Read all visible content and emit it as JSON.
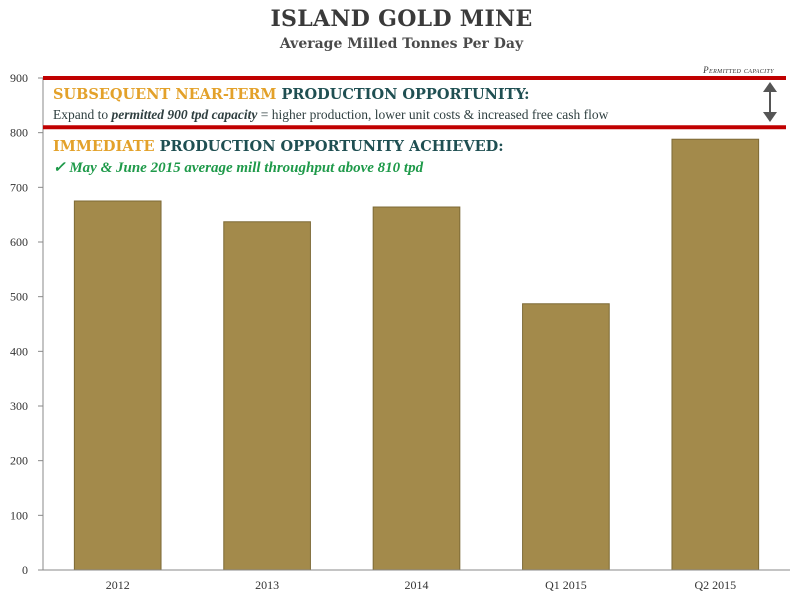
{
  "title": "ISLAND GOLD MINE",
  "subtitle": "Average Milled Tonnes Per Day",
  "annotations": {
    "permitted_label": "Permitted capacity",
    "subsequent_highlight": "SUBSEQUENT NEAR-TERM",
    "subsequent_rest": " PRODUCTION OPPORTUNITY:",
    "expand_prefix": "Expand to ",
    "expand_bold": "permitted 900 tpd capacity",
    "expand_suffix": " = higher production, lower unit costs & increased free cash flow",
    "immediate_highlight": "IMMEDIATE",
    "immediate_rest": " PRODUCTION OPPORTUNITY ACHIEVED:",
    "achieved_line": "✓ May & June 2015 average mill throughput above 810 tpd"
  },
  "colors": {
    "bar": "#a38a4b",
    "bar_edge": "#7d6a36",
    "reference_line": "#c00000",
    "highlight": "#e3a12a",
    "heading": "#1f4f52",
    "achieved": "#1f9a4a"
  },
  "chart_data": {
    "type": "bar",
    "categories": [
      "2012",
      "2013",
      "2014",
      "Q1 2015",
      "Q2 2015"
    ],
    "values": [
      675,
      637,
      664,
      487,
      788
    ],
    "title": "ISLAND GOLD MINE",
    "subtitle": "Average Milled Tonnes Per Day",
    "xlabel": "",
    "ylabel": "",
    "ylim": [
      0,
      900
    ],
    "yticks": [
      0,
      100,
      200,
      300,
      400,
      500,
      600,
      700,
      800,
      900
    ],
    "reference_lines": [
      900,
      810
    ],
    "grid": false,
    "legend": "none"
  }
}
